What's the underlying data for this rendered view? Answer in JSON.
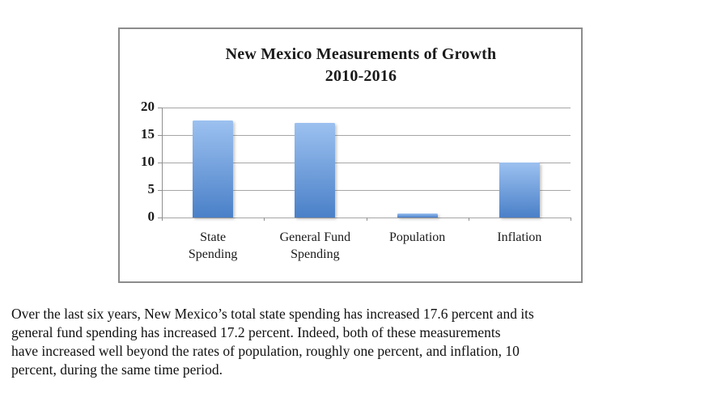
{
  "chart_data": {
    "type": "bar",
    "title": "New Mexico Measurements of Growth\n2010-2016",
    "categories": [
      "State\nSpending",
      "General Fund\nSpending",
      "Population",
      "Inflation"
    ],
    "values": [
      17.6,
      17.2,
      0.7,
      10
    ],
    "yticks": [
      20,
      15,
      10,
      5,
      0
    ],
    "ylim": [
      0,
      20
    ],
    "xlabel": "",
    "ylabel": "",
    "grid": true,
    "legend": false,
    "bar_color_top": "#9cc1f0",
    "bar_color_bottom": "#4a80c8",
    "grid_color": "#a6a6a6",
    "frame_border_color": "#8c8c8c"
  },
  "caption": {
    "lines": [
      "Over the last six years, New Mexico’s total state spending has increased 17.6 percent and its",
      "general fund spending has increased 17.2 percent. Indeed, both of these measurements",
      "have increased well beyond the rates of population, roughly one percent, and inflation, 10",
      "percent, during the same time period."
    ]
  }
}
